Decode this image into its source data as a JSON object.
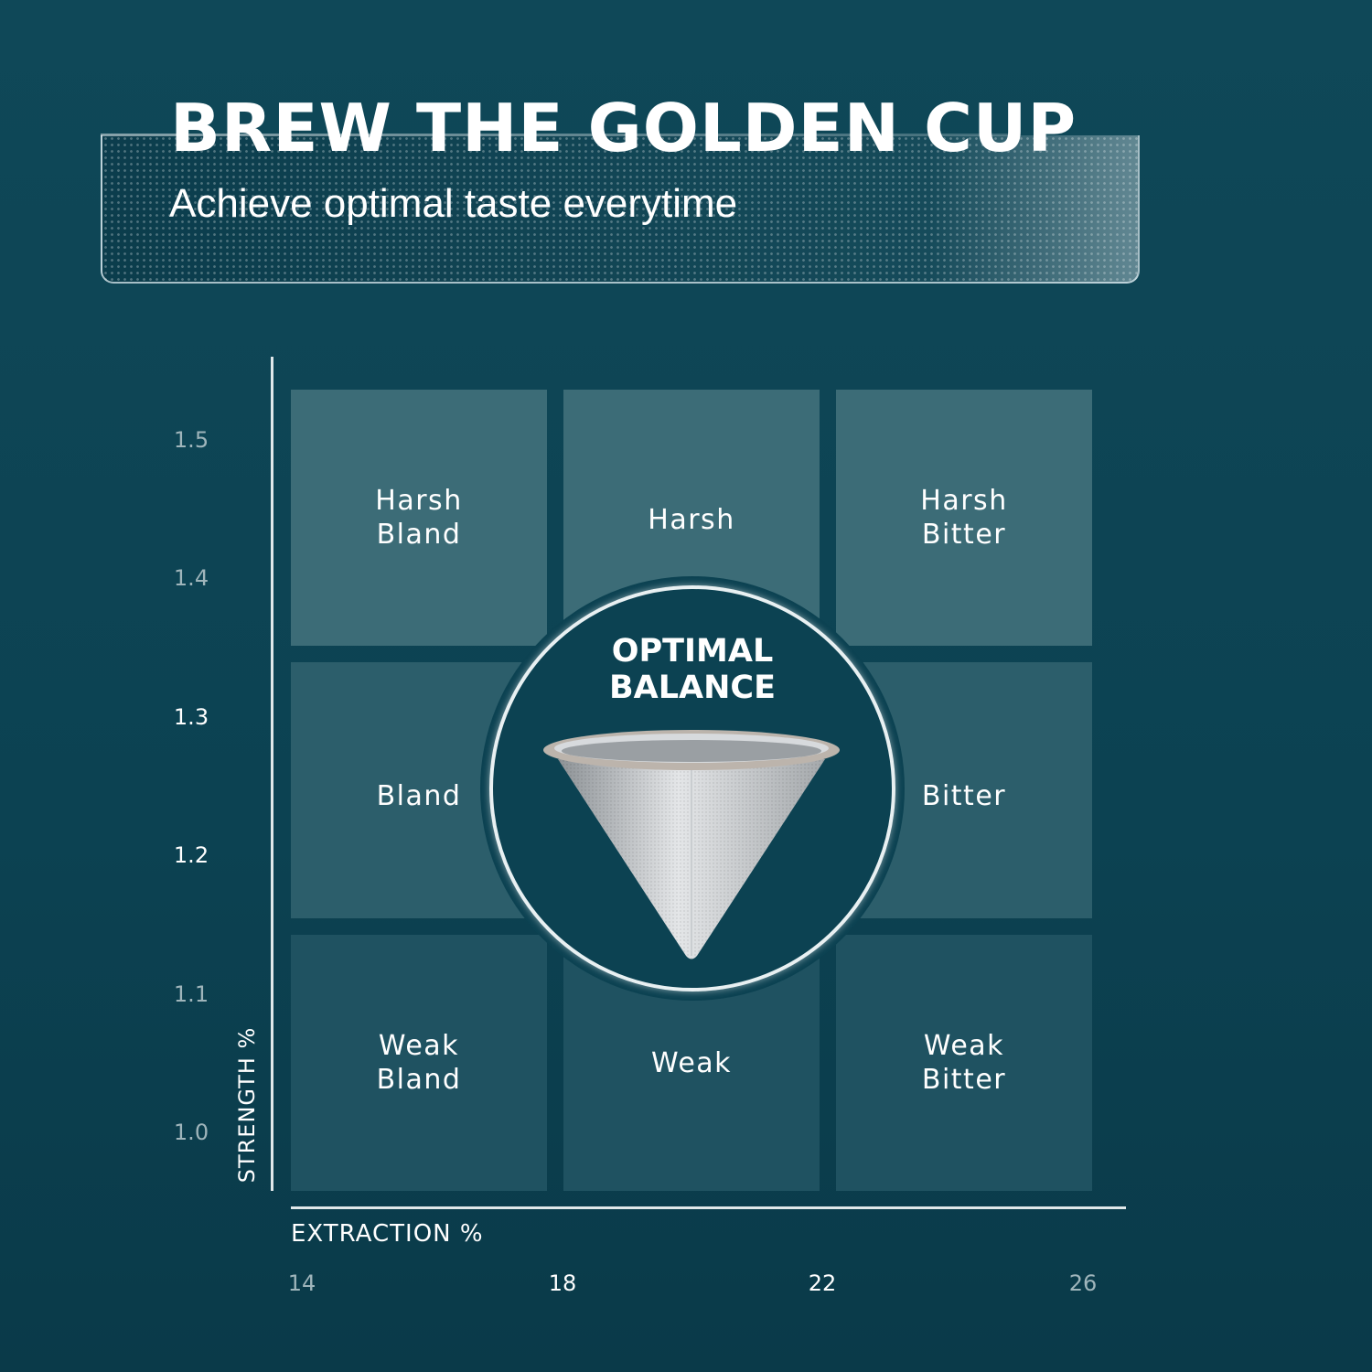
{
  "header": {
    "title": "BREW THE GOLDEN CUP",
    "subtitle": "Achieve optimal taste everytime"
  },
  "chart_data": {
    "type": "heatmap",
    "xlabel": "EXTRACTION %",
    "ylabel": "STRENGTH %",
    "x_ticks": [
      "14",
      "18",
      "22",
      "26"
    ],
    "y_ticks": [
      "1.5",
      "1.4",
      "1.3",
      "1.2",
      "1.1",
      "1.0"
    ],
    "xlim": [
      14,
      26
    ],
    "ylim": [
      1.0,
      1.5
    ],
    "grid_cells": [
      [
        "Harsh\nBland",
        "Harsh",
        "Harsh\nBitter"
      ],
      [
        "Bland",
        "OPTIMAL\nBALANCE",
        "Bitter"
      ],
      [
        "Weak\nBland",
        "Weak",
        "Weak\nBitter"
      ]
    ],
    "center_label": "OPTIMAL\nBALANCE"
  },
  "colors": {
    "background": "#0e4656",
    "cell_top": "#3c6c77",
    "cell_mid": "#2c5e6b",
    "cell_bottom": "#1f5261"
  }
}
